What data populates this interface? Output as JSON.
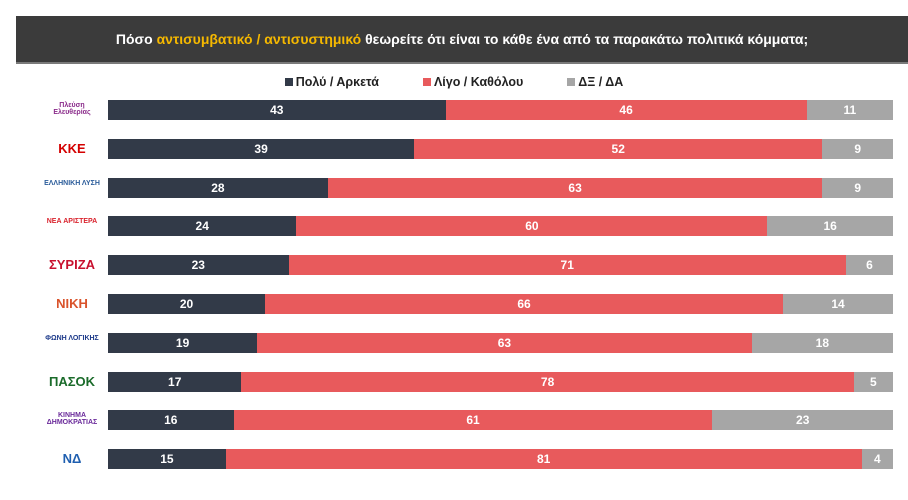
{
  "header": {
    "title_pre": "Πόσο ",
    "title_hl": "αντισυμβατικό / αντισυστημικό",
    "title_post": " θεωρείτε ότι είναι το κάθε ένα από τα παρακάτω πολιτικά κόμματα;",
    "highlight_color": "#f5b800"
  },
  "chart_data": {
    "type": "bar",
    "orientation": "horizontal-stacked-100",
    "title": "Πόσο αντισυμβατικό / αντισυστημικό θεωρείτε ότι είναι το κάθε ένα από τα παρακάτω πολιτικά κόμματα;",
    "legend_position": "top",
    "categories": [
      "Πλεύση Ελευθερίας",
      "ΚΚΕ",
      "Ελληνική Λύση",
      "Νέα Αριστερά",
      "ΣΥΡΙΖΑ",
      "ΝΙΚΗ",
      "Φωνή Λογικής",
      "ΠΑΣΟΚ",
      "Κίνημα Δημοκρατίας",
      "ΝΔ"
    ],
    "series": [
      {
        "name": "Πολύ / Αρκετά",
        "color": "#323a48",
        "values": [
          43,
          39,
          28,
          24,
          23,
          20,
          19,
          17,
          16,
          15
        ]
      },
      {
        "name": "Λίγο / Καθόλου",
        "color": "#e85a5c",
        "values": [
          46,
          52,
          63,
          60,
          71,
          66,
          63,
          78,
          61,
          81
        ]
      },
      {
        "name": "ΔΞ / ΔΑ",
        "color": "#a6a6a6",
        "values": [
          11,
          9,
          9,
          16,
          6,
          14,
          18,
          5,
          23,
          4
        ]
      }
    ]
  },
  "logos": [
    {
      "text": "Πλεύση Ελευθερίας",
      "color": "#8a2a8a"
    },
    {
      "text": "ΚΚΕ",
      "color": "#d40000"
    },
    {
      "text": "ΕΛΛΗΝΙΚΗ ΛΥΣΗ",
      "color": "#2b5c9a"
    },
    {
      "text": "ΝΕΑ ΑΡΙΣΤΕΡΑ",
      "color": "#d9232d"
    },
    {
      "text": "ΣΥΡΙΖΑ",
      "color": "#c8102e"
    },
    {
      "text": "ΝΙΚΗ",
      "color": "#d9532b"
    },
    {
      "text": "ΦΩΝΗ ΛΟΓΙΚΗΣ",
      "color": "#1d3a8a"
    },
    {
      "text": "ΠΑΣΟΚ",
      "color": "#1a6b2a"
    },
    {
      "text": "ΚΙΝΗΜΑ ΔΗΜΟΚΡΑΤΙΑΣ",
      "color": "#6a2a9a"
    },
    {
      "text": "ΝΔ",
      "color": "#1f5fb0"
    }
  ]
}
